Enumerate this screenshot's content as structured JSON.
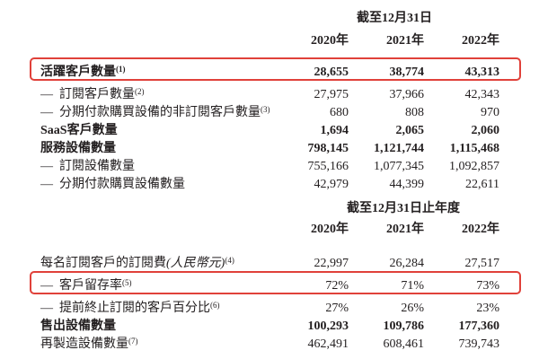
{
  "style": {
    "highlight_box_color": "#e0413a",
    "text_color": "#231f20",
    "background": "#ffffff"
  },
  "table1": {
    "period_header": "截至12月31日",
    "years": [
      "2020年",
      "2021年",
      "2022年"
    ],
    "rows": [
      {
        "label": "活躍客戶數量",
        "sup": "(1)",
        "dash": "",
        "values": [
          "28,655",
          "38,774",
          "43,313"
        ]
      },
      {
        "label": "訂閱客戶數量",
        "sup": "(2)",
        "dash": "—",
        "values": [
          "27,975",
          "37,966",
          "42,343"
        ]
      },
      {
        "label": "分期付款購買設備的非訂閱客戶數量",
        "sup": "(3)",
        "dash": "—",
        "values": [
          "680",
          "808",
          "970"
        ]
      },
      {
        "label": "SaaS客戶數量",
        "sup": "",
        "dash": "",
        "values": [
          "1,694",
          "2,065",
          "2,060"
        ]
      },
      {
        "label": "服務設備數量",
        "sup": "",
        "dash": "",
        "values": [
          "798,145",
          "1,121,744",
          "1,115,468"
        ]
      },
      {
        "label": "訂閱設備數量",
        "sup": "",
        "dash": "—",
        "values": [
          "755,166",
          "1,077,345",
          "1,092,857"
        ]
      },
      {
        "label": "分期付款購買設備數量",
        "sup": "",
        "dash": "—",
        "values": [
          "42,979",
          "44,399",
          "22,611"
        ]
      }
    ]
  },
  "table2": {
    "period_header": "截至12月31日止年度",
    "years": [
      "2020年",
      "2021年",
      "2022年"
    ],
    "rows": [
      {
        "label": "每名訂閱客戶的訂閱費",
        "label_italic": "(人民幣元)",
        "sup": "(4)",
        "dash": "",
        "values": [
          "22,997",
          "26,284",
          "27,517"
        ]
      },
      {
        "label": "客戶留存率",
        "sup": "(5)",
        "dash": "—",
        "values": [
          "72%",
          "71%",
          "73%"
        ]
      },
      {
        "label": "提前終止訂閱的客戶百分比",
        "sup": "(6)",
        "dash": "—",
        "values": [
          "27%",
          "26%",
          "23%"
        ]
      },
      {
        "label": "售出設備數量",
        "sup": "",
        "dash": "",
        "values": [
          "100,293",
          "109,786",
          "177,360"
        ]
      },
      {
        "label": "再製造設備數量",
        "sup": "(7)",
        "dash": "",
        "values": [
          "462,491",
          "608,461",
          "739,743"
        ]
      }
    ]
  }
}
